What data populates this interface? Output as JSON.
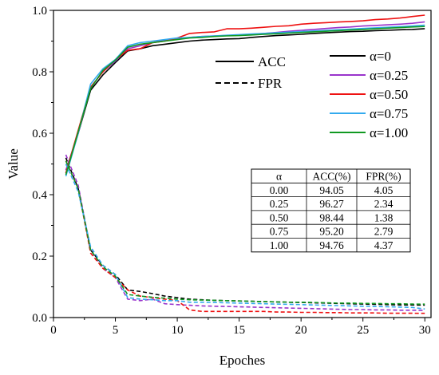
{
  "chart_data": {
    "type": "line",
    "xlabel": "Epoches",
    "ylabel": "Value",
    "xlim": [
      0,
      30.5
    ],
    "ylim": [
      0,
      1.0
    ],
    "xticks": [
      "0",
      "5",
      "10",
      "15",
      "20",
      "25",
      "30"
    ],
    "yticks": [
      "0.0",
      "0.2",
      "0.4",
      "0.6",
      "0.8",
      "1.0"
    ],
    "grid": false,
    "x": [
      1,
      2,
      3,
      4,
      5,
      6,
      7,
      8,
      9,
      10,
      11,
      12,
      13,
      14,
      15,
      16,
      17,
      18,
      19,
      20,
      21,
      22,
      23,
      24,
      25,
      26,
      27,
      28,
      29,
      30
    ],
    "style_legend": {
      "placement": "top-center",
      "entries": [
        {
          "label": "ACC",
          "dash": "solid"
        },
        {
          "label": "FPR",
          "dash": "dashed"
        }
      ]
    },
    "series_legend": {
      "placement": "top-right",
      "entries": [
        {
          "label": "α=0",
          "color": "#000000"
        },
        {
          "label": "α=0.25",
          "color": "#9933cc"
        },
        {
          "label": "α=0.50",
          "color": "#ee1111"
        },
        {
          "label": "α=0.75",
          "color": "#33aaee"
        },
        {
          "label": "α=1.00",
          "color": "#119922"
        }
      ]
    },
    "series": [
      {
        "alpha": "α=0",
        "color": "#000000",
        "acc": [
          0.47,
          0.6,
          0.74,
          0.79,
          0.83,
          0.868,
          0.875,
          0.885,
          0.89,
          0.895,
          0.9,
          0.903,
          0.905,
          0.907,
          0.908,
          0.912,
          0.915,
          0.918,
          0.92,
          0.922,
          0.925,
          0.927,
          0.929,
          0.931,
          0.932,
          0.934,
          0.935,
          0.937,
          0.938,
          0.9405
        ],
        "fpr": [
          0.52,
          0.42,
          0.22,
          0.17,
          0.14,
          0.09,
          0.085,
          0.078,
          0.07,
          0.065,
          0.06,
          0.058,
          0.056,
          0.055,
          0.054,
          0.053,
          0.052,
          0.051,
          0.05,
          0.049,
          0.048,
          0.047,
          0.046,
          0.045,
          0.044,
          0.043,
          0.042,
          0.041,
          0.041,
          0.0405
        ]
      },
      {
        "alpha": "α=0.25",
        "color": "#9933cc",
        "acc": [
          0.48,
          0.6,
          0.75,
          0.8,
          0.835,
          0.875,
          0.885,
          0.895,
          0.903,
          0.908,
          0.912,
          0.915,
          0.917,
          0.918,
          0.92,
          0.922,
          0.925,
          0.928,
          0.932,
          0.935,
          0.938,
          0.941,
          0.944,
          0.946,
          0.949,
          0.951,
          0.953,
          0.955,
          0.958,
          0.9627
        ],
        "fpr": [
          0.53,
          0.43,
          0.22,
          0.16,
          0.13,
          0.06,
          0.055,
          0.06,
          0.045,
          0.042,
          0.04,
          0.038,
          0.037,
          0.036,
          0.035,
          0.034,
          0.033,
          0.032,
          0.031,
          0.03,
          0.029,
          0.028,
          0.027,
          0.026,
          0.026,
          0.025,
          0.025,
          0.024,
          0.024,
          0.0234
        ]
      },
      {
        "alpha": "α=0.50",
        "color": "#ee1111",
        "acc": [
          0.47,
          0.61,
          0.75,
          0.8,
          0.84,
          0.87,
          0.875,
          0.895,
          0.9,
          0.91,
          0.925,
          0.928,
          0.93,
          0.94,
          0.94,
          0.942,
          0.945,
          0.948,
          0.95,
          0.955,
          0.958,
          0.96,
          0.962,
          0.964,
          0.966,
          0.97,
          0.972,
          0.975,
          0.98,
          0.9844
        ],
        "fpr": [
          0.51,
          0.42,
          0.21,
          0.16,
          0.13,
          0.09,
          0.07,
          0.065,
          0.06,
          0.055,
          0.025,
          0.02,
          0.02,
          0.02,
          0.02,
          0.02,
          0.02,
          0.018,
          0.018,
          0.017,
          0.017,
          0.016,
          0.016,
          0.015,
          0.015,
          0.015,
          0.014,
          0.014,
          0.014,
          0.0138
        ]
      },
      {
        "alpha": "α=0.75",
        "color": "#33aaee",
        "acc": [
          0.46,
          0.6,
          0.76,
          0.81,
          0.84,
          0.885,
          0.895,
          0.9,
          0.905,
          0.91,
          0.912,
          0.915,
          0.917,
          0.919,
          0.921,
          0.923,
          0.925,
          0.927,
          0.929,
          0.931,
          0.933,
          0.935,
          0.937,
          0.939,
          0.941,
          0.943,
          0.945,
          0.947,
          0.949,
          0.952
        ],
        "fpr": [
          0.5,
          0.41,
          0.23,
          0.17,
          0.14,
          0.065,
          0.06,
          0.058,
          0.055,
          0.055,
          0.05,
          0.05,
          0.049,
          0.048,
          0.047,
          0.046,
          0.045,
          0.044,
          0.043,
          0.042,
          0.041,
          0.04,
          0.039,
          0.038,
          0.037,
          0.036,
          0.035,
          0.034,
          0.033,
          0.0279
        ]
      },
      {
        "alpha": "α=1.00",
        "color": "#119922",
        "acc": [
          0.465,
          0.605,
          0.745,
          0.805,
          0.838,
          0.88,
          0.89,
          0.895,
          0.9,
          0.905,
          0.91,
          0.912,
          0.915,
          0.917,
          0.918,
          0.92,
          0.922,
          0.924,
          0.926,
          0.928,
          0.93,
          0.932,
          0.934,
          0.936,
          0.938,
          0.94,
          0.942,
          0.944,
          0.946,
          0.9476
        ],
        "fpr": [
          0.51,
          0.42,
          0.22,
          0.165,
          0.135,
          0.075,
          0.07,
          0.066,
          0.063,
          0.06,
          0.058,
          0.057,
          0.056,
          0.055,
          0.054,
          0.053,
          0.052,
          0.051,
          0.05,
          0.05,
          0.049,
          0.048,
          0.047,
          0.047,
          0.046,
          0.046,
          0.045,
          0.045,
          0.044,
          0.0437
        ]
      }
    ],
    "table": {
      "headers": [
        "α",
        "ACC(%)",
        "FPR(%)"
      ],
      "rows": [
        [
          "0.00",
          "94.05",
          "4.05"
        ],
        [
          "0.25",
          "96.27",
          "2.34"
        ],
        [
          "0.50",
          "98.44",
          "1.38"
        ],
        [
          "0.75",
          "95.20",
          "2.79"
        ],
        [
          "1.00",
          "94.76",
          "4.37"
        ]
      ]
    }
  }
}
